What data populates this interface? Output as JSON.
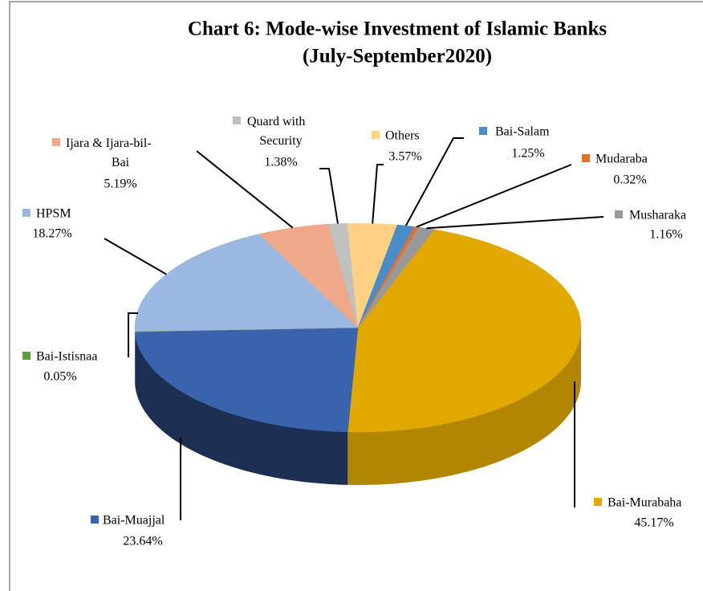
{
  "chart_data": {
    "type": "pie",
    "title": "Chart 6: Mode-wise Investment of Islamic Banks",
    "subtitle": "(July-September2020)",
    "categories": [
      "Bai-Murabaha",
      "Bai-Muajjal",
      "Bai-Istisnaa",
      "HPSM",
      "Ijara & Ijara-bil-Bai",
      "Quard with Security",
      "Others",
      "Bai-Salam",
      "Mudaraba",
      "Musharaka"
    ],
    "values": [
      45.17,
      23.64,
      0.05,
      18.27,
      5.19,
      1.38,
      3.57,
      1.25,
      0.32,
      1.16
    ],
    "value_labels": [
      "45.17%",
      "23.64%",
      "0.05%",
      "18.27%",
      "5.19%",
      "1.38%",
      "3.57%",
      "1.25%",
      "0.32%",
      "1.16%"
    ],
    "colors": [
      "#E0A800",
      "#3A63AD",
      "#5E9E3A",
      "#9AB8E0",
      "#F0A88A",
      "#C0C0C0",
      "#FDD283",
      "#4A8CC8",
      "#E07030",
      "#999999"
    ]
  }
}
